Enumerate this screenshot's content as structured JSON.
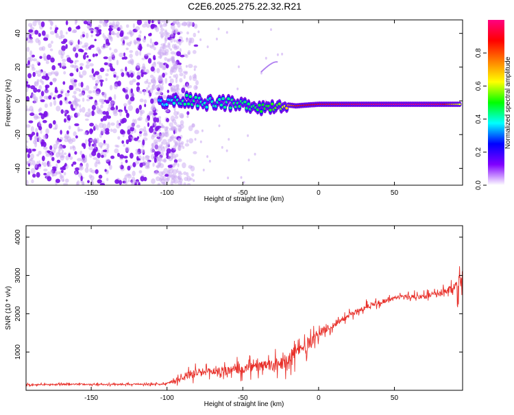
{
  "figure": {
    "title": "C2E6.2025.275.22.32.R21"
  },
  "chart_data": [
    {
      "type": "heatmap",
      "title": "C2E6.2025.275.22.32.R21",
      "xlabel": "Height of straight line (km)",
      "ylabel": "Frequency (Hz)",
      "xlim": [
        -193,
        95
      ],
      "ylim": [
        -50,
        48
      ],
      "xticks": [
        -150,
        -100,
        -50,
        0,
        50
      ],
      "xtick_labels": [
        "-150",
        "-100",
        "-50",
        "0",
        "50"
      ],
      "yticks": [
        -40,
        -20,
        0,
        20,
        40
      ],
      "ytick_labels": [
        "-40",
        "-20",
        "0",
        "20",
        "40"
      ],
      "grid": false,
      "colorbar": {
        "label": "Normalized spectral amplitude",
        "range": [
          0,
          1
        ],
        "ticks": [
          0.0,
          0.2,
          0.4,
          0.6,
          0.8
        ],
        "tick_labels": [
          "0.0",
          "0.2",
          "0.4",
          "0.6",
          "0.8"
        ],
        "colormap": [
          "#ffffff",
          "#8000ff",
          "#0000ff",
          "#00ffff",
          "#00ff00",
          "#ffff00",
          "#ff8000",
          "#ff0000",
          "#ff0080"
        ]
      },
      "features": {
        "noise_region_x": [
          -193,
          -90
        ],
        "signal_line": {
          "x": [
            -105,
            -95,
            -85,
            -75,
            -65,
            -55,
            -45,
            -35,
            -25,
            -15,
            0,
            20,
            40,
            60,
            80,
            94
          ],
          "freq": [
            -2,
            0,
            1,
            -1,
            0,
            -3,
            -2,
            -4,
            -2,
            -3,
            -2,
            -2,
            -2,
            -2,
            -2,
            -2
          ],
          "peak_amplitude": [
            0.35,
            0.4,
            0.45,
            0.4,
            0.42,
            0.45,
            0.45,
            0.5,
            0.55,
            0.85,
            0.9,
            0.95,
            0.98,
            1.0,
            0.95,
            0.6
          ]
        }
      }
    },
    {
      "type": "line",
      "xlabel": "Height of straight line (km)",
      "ylabel": "SNR (10 * v/v)",
      "xlim": [
        -193,
        95
      ],
      "ylim": [
        0,
        4300
      ],
      "xticks": [
        -150,
        -100,
        -50,
        0,
        50
      ],
      "xtick_labels": [
        "-150",
        "-100",
        "-50",
        "0",
        "50"
      ],
      "yticks": [
        1000,
        2000,
        3000,
        4000
      ],
      "ytick_labels": [
        "1000",
        "2000",
        "3000",
        "4000"
      ],
      "grid": false,
      "color": "#e8302a",
      "series": [
        {
          "x": [
            -193,
            -180,
            -160,
            -140,
            -120,
            -105,
            -100,
            -95,
            -90,
            -85,
            -80,
            -75,
            -70,
            -65,
            -60,
            -55,
            -50,
            -45,
            -40,
            -35,
            -30,
            -25,
            -20,
            -15,
            -10,
            -5,
            0,
            5,
            10,
            15,
            20,
            25,
            30,
            35,
            40,
            45,
            50,
            55,
            60,
            65,
            70,
            75,
            80,
            85,
            88,
            90,
            92,
            94
          ],
          "y": [
            150,
            150,
            160,
            150,
            160,
            160,
            180,
            250,
            350,
            400,
            450,
            450,
            500,
            500,
            520,
            520,
            550,
            600,
            600,
            650,
            650,
            700,
            850,
            1000,
            1100,
            1300,
            1500,
            1600,
            1700,
            1850,
            1950,
            2050,
            2150,
            2250,
            2300,
            2350,
            2400,
            2450,
            2450,
            2450,
            2450,
            2500,
            2500,
            2600,
            2650,
            2700,
            2800,
            2900
          ],
          "noise_amp": [
            100,
            100,
            100,
            100,
            100,
            100,
            120,
            300,
            400,
            600,
            700,
            600,
            600,
            600,
            650,
            700,
            700,
            700,
            700,
            800,
            800,
            900,
            1200,
            1100,
            1000,
            900,
            600,
            500,
            500,
            450,
            400,
            400,
            400,
            400,
            350,
            350,
            300,
            300,
            300,
            350,
            350,
            400,
            450,
            500,
            600,
            800,
            1300,
            1200
          ]
        }
      ]
    }
  ]
}
